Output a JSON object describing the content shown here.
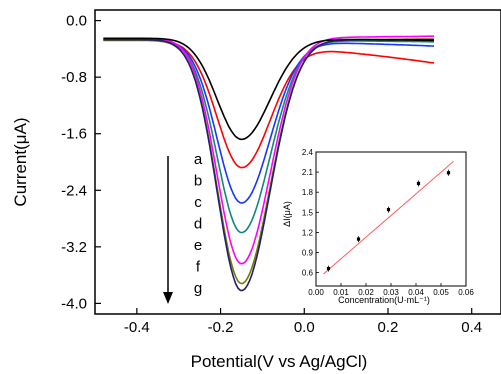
{
  "chart_data": [
    {
      "type": "line",
      "title": "",
      "xlabel": "Potential(V vs Ag/AgCl)",
      "ylabel": "Current(μA)",
      "xlim": [
        -0.5,
        0.47
      ],
      "ylim": [
        -4.15,
        0.15
      ],
      "x_ticks": [
        "-0.4",
        "-0.2",
        "0.0",
        "0.2",
        "0.4"
      ],
      "y_ticks": [
        "0.0",
        "-0.8",
        "-1.6",
        "-2.4",
        "-3.2",
        "-4.0"
      ],
      "series": [
        {
          "name": "a",
          "color": "#000000",
          "peak_x": -0.15,
          "peak_y": -1.68,
          "start_y": -0.25,
          "end_y": -0.28
        },
        {
          "name": "b",
          "color": "#ff0000",
          "peak_x": -0.15,
          "peak_y": -2.08,
          "start_y": -0.27,
          "end_y": -0.6
        },
        {
          "name": "c",
          "color": "#1a35ff",
          "peak_x": -0.15,
          "peak_y": -2.58,
          "start_y": -0.27,
          "end_y": -0.36
        },
        {
          "name": "d",
          "color": "#0e8a7a",
          "peak_x": -0.15,
          "peak_y": -3.0,
          "start_y": -0.27,
          "end_y": -0.3
        },
        {
          "name": "e",
          "color": "#ff00ff",
          "peak_x": -0.15,
          "peak_y": -3.44,
          "start_y": -0.25,
          "end_y": -0.22
        },
        {
          "name": "f",
          "color": "#7a7a00",
          "peak_x": -0.15,
          "peak_y": -3.72,
          "start_y": -0.28,
          "end_y": -0.26
        },
        {
          "name": "g",
          "color": "#202070",
          "peak_x": -0.15,
          "peak_y": -3.82,
          "start_y": -0.27,
          "end_y": -0.27
        }
      ]
    },
    {
      "type": "scatter",
      "title": "",
      "xlabel": "Concentration(U·mL⁻¹)",
      "ylabel": "ΔI(μA)",
      "xlim": [
        0,
        0.06
      ],
      "ylim": [
        0.4,
        2.4
      ],
      "x_ticks": [
        "0.00",
        "0.01",
        "0.02",
        "0.03",
        "0.04",
        "0.05",
        "0.06"
      ],
      "y_ticks": [
        "0.6",
        "0.9",
        "1.2",
        "1.5",
        "1.8",
        "2.1",
        "2.4"
      ],
      "points": [
        {
          "x": 0.005,
          "y": 0.66
        },
        {
          "x": 0.017,
          "y": 1.1
        },
        {
          "x": 0.029,
          "y": 1.54
        },
        {
          "x": 0.041,
          "y": 1.93
        },
        {
          "x": 0.053,
          "y": 2.09
        }
      ],
      "fit_line": {
        "x": [
          0.003,
          0.055
        ],
        "y": [
          0.58,
          2.26
        ],
        "color": "#ff6060"
      }
    }
  ]
}
